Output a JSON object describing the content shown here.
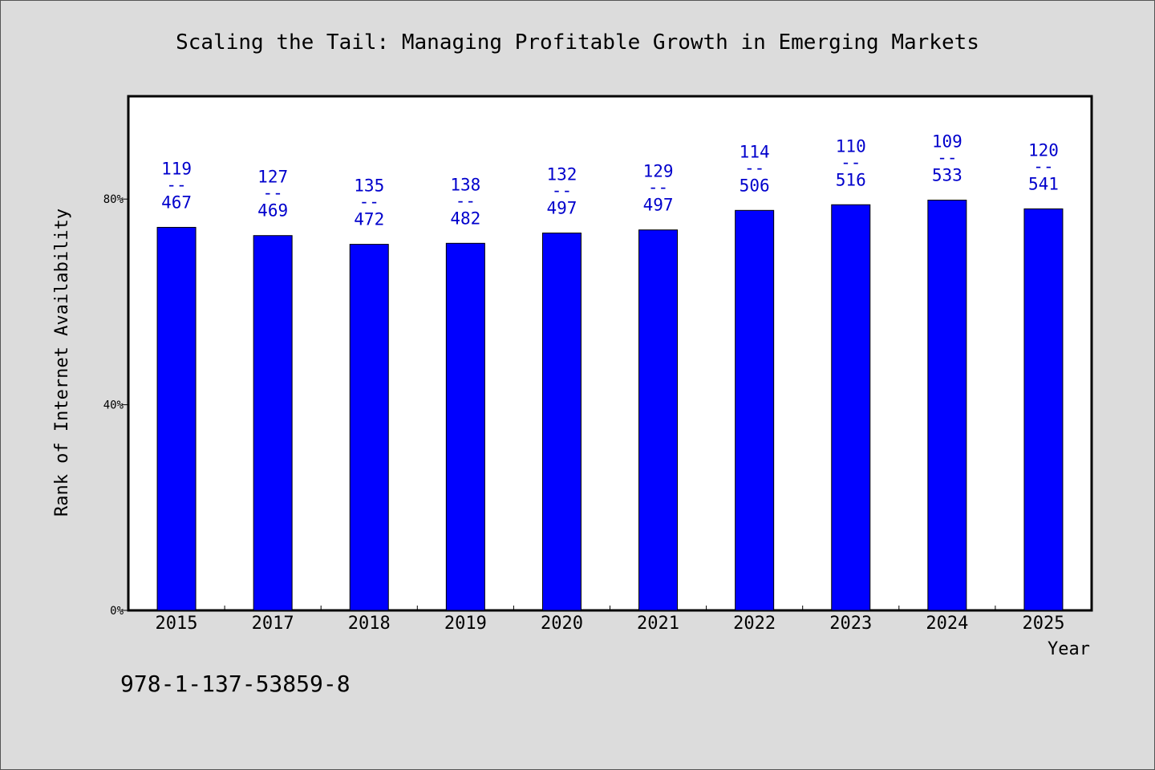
{
  "chart_data": {
    "type": "bar",
    "title": "Scaling the Tail: Managing Profitable Growth in Emerging Markets",
    "xlabel": "Year",
    "ylabel": "Rank of Internet Availability",
    "categories": [
      "2015",
      "2017",
      "2018",
      "2019",
      "2020",
      "2021",
      "2022",
      "2023",
      "2024",
      "2025"
    ],
    "series": [
      {
        "values": [
          74.5,
          72.9,
          71.2,
          71.4,
          73.4,
          74.0,
          77.8,
          78.9,
          79.8,
          78.1
        ],
        "rank_labels": [
          "119",
          "127",
          "135",
          "138",
          "132",
          "129",
          "114",
          "110",
          "109",
          "120"
        ],
        "total_labels": [
          "467",
          "469",
          "472",
          "482",
          "497",
          "497",
          "506",
          "516",
          "533",
          "541"
        ]
      }
    ],
    "label_separator": "--",
    "ylim": [
      0,
      100
    ],
    "yticks": [
      0,
      40,
      80
    ],
    "ytick_labels": [
      "0%",
      "40%",
      "80%"
    ],
    "grid": false,
    "legend": "none",
    "colors": {
      "bar": "#0000ff",
      "label": "#0000cc",
      "background": "#dcdcdc",
      "plot_background": "#ffffff",
      "axis": "#000000"
    }
  },
  "footer": {
    "isbn": "978-1-137-53859-8"
  }
}
